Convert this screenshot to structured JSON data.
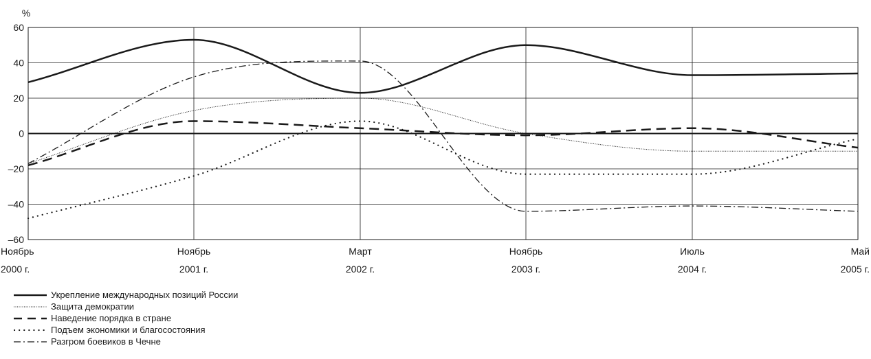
{
  "chart_data": {
    "type": "line",
    "ylabel": "%",
    "ylim": [
      -60,
      60
    ],
    "yticks": [
      "60",
      "40",
      "20",
      "0",
      "–20",
      "–40",
      "–60"
    ],
    "x_months": [
      "Ноябрь",
      "Ноябрь",
      "Март",
      "Ноябрь",
      "Июль",
      "Май"
    ],
    "x_years": [
      "2000 г.",
      "2001 г.",
      "2002 г.",
      "2003 г.",
      "2004 г.",
      "2005 г."
    ],
    "grid": true,
    "legend_position": "bottom-left",
    "series": [
      {
        "name": "Укрепление международных позиций России",
        "style": "solid",
        "values": [
          29,
          53,
          23,
          50,
          33,
          34
        ]
      },
      {
        "name": "Защита демократии",
        "style": "dotted-fine",
        "values": [
          -17,
          13,
          20,
          0,
          -10,
          -10
        ]
      },
      {
        "name": "Наведение порядка в стране",
        "style": "dashed",
        "values": [
          -18,
          7,
          3,
          -1,
          3,
          -8
        ]
      },
      {
        "name": "Подъем экономики и благосостояния",
        "style": "dotted",
        "values": [
          -48,
          -24,
          7,
          -23,
          -23,
          -3
        ]
      },
      {
        "name": "Разгром боевиков в Чечне",
        "style": "dashdot",
        "values": [
          -17,
          32,
          41,
          -44,
          -41,
          -44
        ]
      }
    ]
  }
}
